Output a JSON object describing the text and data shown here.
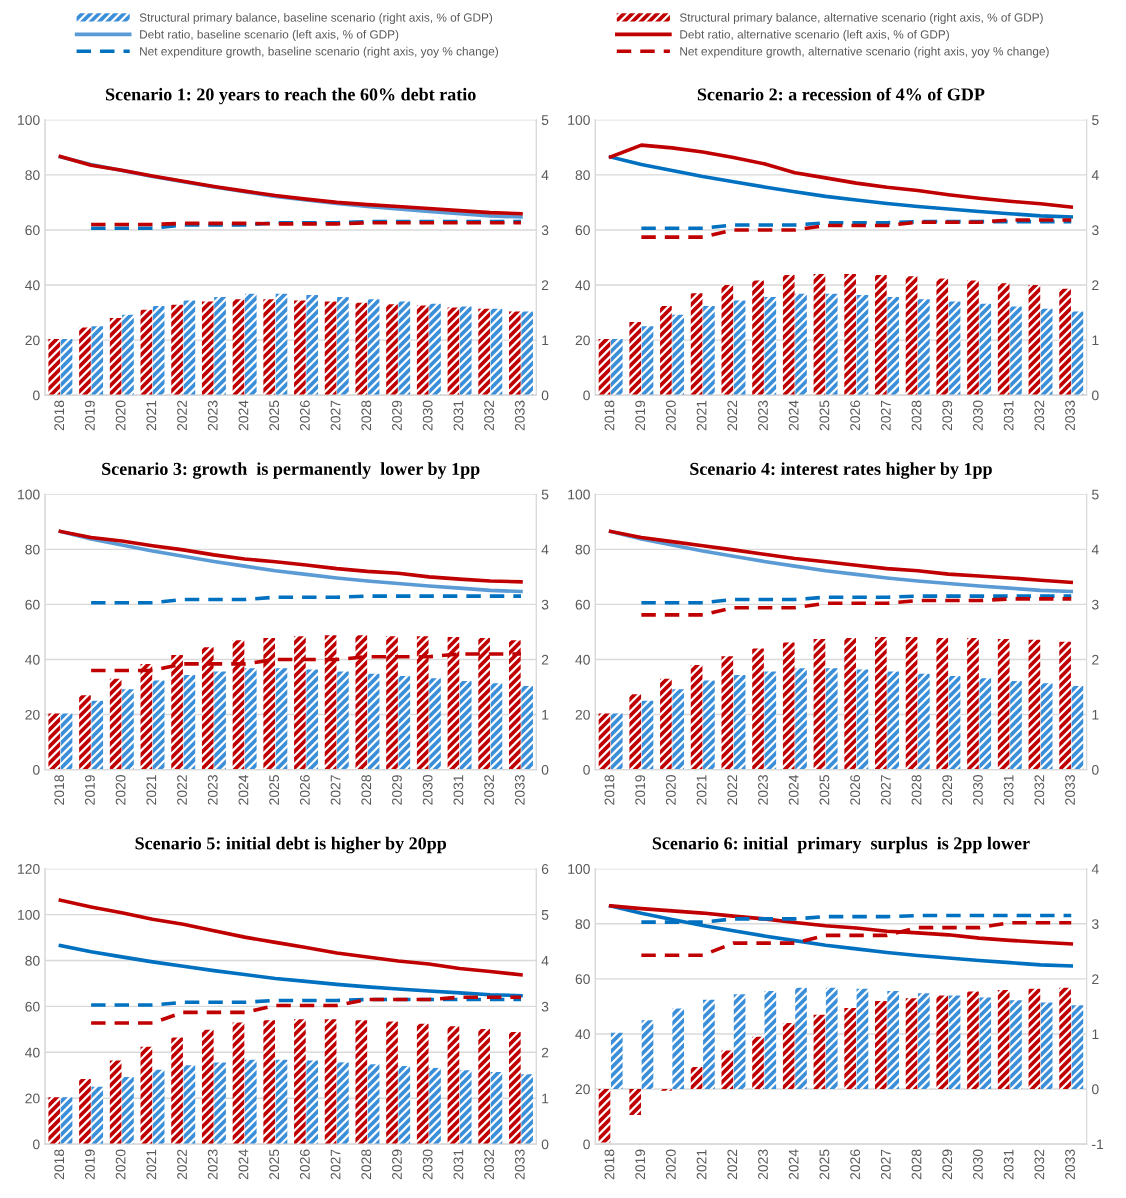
{
  "chart_data": [
    {
      "type": "bar",
      "title": "Scenario 1: 20 years to reach the 60% debt ratio",
      "legend": "top",
      "grid": "y",
      "categories": [
        "2018",
        "2019",
        "2020",
        "2021",
        "2022",
        "2023",
        "2024",
        "2025",
        "2026",
        "2027",
        "2028",
        "2029",
        "2030",
        "2031",
        "2032",
        "2033"
      ],
      "ylim": [
        0,
        100
      ],
      "yticks": [
        0,
        20,
        40,
        60,
        80,
        100
      ],
      "y2lim": [
        0,
        5
      ],
      "y2ticks": [
        0,
        1,
        2,
        3,
        4,
        5
      ],
      "series": [
        {
          "name": "Structural primary balance, baseline scenario (right axis, % of GDP)",
          "axis": "y2",
          "color": "#3b8fd9",
          "values": [
            1.02,
            1.25,
            1.46,
            1.62,
            1.72,
            1.78,
            1.84,
            1.84,
            1.82,
            1.78,
            1.74,
            1.7,
            1.66,
            1.61,
            1.57,
            1.52
          ]
        },
        {
          "name": "Debt ratio, baseline scenario (left axis, % of GDP)",
          "type": "line",
          "axis": "y",
          "color": "#5b9bd5",
          "line_style": "solid",
          "values": [
            86.5,
            83.8,
            81.6,
            79.4,
            77.5,
            75.6,
            73.9,
            72.2,
            70.9,
            69.6,
            68.5,
            67.6,
            66.7,
            65.9,
            65.1,
            64.7
          ]
        },
        {
          "name": "Net expenditure growth, baseline scenario (right axis, yoy % change)",
          "type": "line",
          "axis": "y2",
          "color": "#0070c0",
          "line_style": "dashed",
          "values": [
            null,
            3.03,
            3.03,
            3.03,
            3.09,
            3.09,
            3.09,
            3.13,
            3.13,
            3.13,
            3.15,
            3.15,
            3.15,
            3.15,
            3.15,
            3.15
          ]
        },
        {
          "name": "Structural primary balance, alternative scenario (right axis, % of GDP)",
          "axis": "y2",
          "color": "#c00000",
          "values": [
            1.02,
            1.23,
            1.4,
            1.55,
            1.64,
            1.7,
            1.74,
            1.74,
            1.72,
            1.7,
            1.68,
            1.65,
            1.63,
            1.59,
            1.57,
            1.52
          ]
        },
        {
          "name": "Debt ratio, alternative scenario (left axis, % of GDP)",
          "type": "line",
          "axis": "y",
          "color": "#c00000",
          "line_style": "solid",
          "values": [
            86.7,
            83.5,
            81.7,
            79.6,
            77.7,
            75.8,
            74.1,
            72.5,
            71.2,
            70.0,
            69.2,
            68.5,
            67.8,
            67.0,
            66.3,
            65.9
          ]
        },
        {
          "name": "Net expenditure growth, alternative scenario (right axis, yoy % change)",
          "type": "line",
          "axis": "y2",
          "color": "#c00000",
          "line_style": "dashed",
          "values": [
            null,
            3.1,
            3.1,
            3.1,
            3.12,
            3.12,
            3.12,
            3.11,
            3.11,
            3.11,
            3.13,
            3.13,
            3.13,
            3.13,
            3.13,
            3.13
          ]
        }
      ]
    },
    {
      "type": "bar",
      "title": "Scenario 2: a recession of 4% of GDP",
      "grid": "y",
      "categories": [
        "2018",
        "2019",
        "2020",
        "2021",
        "2022",
        "2023",
        "2024",
        "2025",
        "2026",
        "2027",
        "2028",
        "2029",
        "2030",
        "2031",
        "2032",
        "2033"
      ],
      "ylim": [
        0,
        100
      ],
      "yticks": [
        0,
        20,
        40,
        60,
        80,
        100
      ],
      "y2lim": [
        0,
        5
      ],
      "y2ticks": [
        0,
        1,
        2,
        3,
        4,
        5
      ],
      "series": [
        {
          "axis": "y2",
          "color": "#3b8fd9",
          "values": [
            1.02,
            1.25,
            1.46,
            1.62,
            1.72,
            1.78,
            1.84,
            1.84,
            1.82,
            1.78,
            1.74,
            1.7,
            1.66,
            1.61,
            1.57,
            1.52
          ]
        },
        {
          "type": "line",
          "axis": "y",
          "color": "#0070c0",
          "line_style": "solid",
          "values": [
            86.5,
            83.8,
            81.6,
            79.4,
            77.5,
            75.6,
            73.9,
            72.2,
            70.9,
            69.6,
            68.5,
            67.6,
            66.7,
            65.9,
            65.1,
            64.7
          ]
        },
        {
          "type": "line",
          "axis": "y2",
          "color": "#0070c0",
          "line_style": "dashed",
          "values": [
            null,
            3.03,
            3.03,
            3.03,
            3.09,
            3.09,
            3.09,
            3.13,
            3.13,
            3.13,
            3.15,
            3.15,
            3.15,
            3.15,
            3.15,
            3.15
          ]
        },
        {
          "axis": "y2",
          "color": "#c00000",
          "values": [
            1.02,
            1.33,
            1.62,
            1.85,
            2.0,
            2.08,
            2.18,
            2.2,
            2.2,
            2.18,
            2.16,
            2.12,
            2.08,
            2.03,
            2.0,
            1.93
          ]
        },
        {
          "type": "line",
          "axis": "y",
          "color": "#c00000",
          "line_style": "solid",
          "values": [
            86.5,
            90.8,
            89.8,
            88.3,
            86.3,
            84.0,
            80.8,
            78.9,
            77.0,
            75.5,
            74.3,
            72.8,
            71.5,
            70.4,
            69.5,
            68.3
          ]
        },
        {
          "type": "line",
          "axis": "y2",
          "color": "#c00000",
          "line_style": "dashed",
          "values": [
            null,
            2.87,
            2.87,
            2.87,
            3.0,
            3.0,
            3.0,
            3.08,
            3.08,
            3.08,
            3.14,
            3.14,
            3.14,
            3.18,
            3.18,
            3.18
          ]
        }
      ]
    },
    {
      "type": "bar",
      "title": "Scenario 3: growth  is permanently  lower by 1pp",
      "grid": "y",
      "categories": [
        "2018",
        "2019",
        "2020",
        "2021",
        "2022",
        "2023",
        "2024",
        "2025",
        "2026",
        "2027",
        "2028",
        "2029",
        "2030",
        "2031",
        "2032",
        "2033"
      ],
      "ylim": [
        0,
        100
      ],
      "yticks": [
        0,
        20,
        40,
        60,
        80,
        100
      ],
      "y2lim": [
        0,
        5
      ],
      "y2ticks": [
        0,
        1,
        2,
        3,
        4,
        5
      ],
      "series": [
        {
          "axis": "y2",
          "color": "#3b8fd9",
          "values": [
            1.02,
            1.25,
            1.46,
            1.62,
            1.72,
            1.78,
            1.84,
            1.84,
            1.82,
            1.78,
            1.74,
            1.7,
            1.66,
            1.61,
            1.57,
            1.52
          ]
        },
        {
          "type": "line",
          "axis": "y",
          "color": "#5b9bd5",
          "line_style": "solid",
          "values": [
            86.5,
            83.8,
            81.6,
            79.4,
            77.5,
            75.6,
            73.9,
            72.2,
            70.9,
            69.6,
            68.5,
            67.6,
            66.7,
            65.9,
            65.1,
            64.7
          ]
        },
        {
          "type": "line",
          "axis": "y2",
          "color": "#0070c0",
          "line_style": "dashed",
          "values": [
            null,
            3.03,
            3.03,
            3.03,
            3.09,
            3.09,
            3.09,
            3.13,
            3.13,
            3.13,
            3.15,
            3.15,
            3.15,
            3.15,
            3.15,
            3.15
          ]
        },
        {
          "axis": "y2",
          "color": "#c00000",
          "values": [
            1.02,
            1.35,
            1.65,
            1.92,
            2.08,
            2.22,
            2.35,
            2.39,
            2.42,
            2.44,
            2.44,
            2.42,
            2.42,
            2.41,
            2.39,
            2.35
          ]
        },
        {
          "type": "line",
          "axis": "y",
          "color": "#c00000",
          "line_style": "solid",
          "values": [
            86.5,
            84.3,
            83.0,
            81.3,
            79.8,
            78.0,
            76.5,
            75.5,
            74.3,
            73.0,
            72.0,
            71.3,
            70.0,
            69.2,
            68.5,
            68.2
          ]
        },
        {
          "type": "line",
          "axis": "y2",
          "color": "#c00000",
          "line_style": "dashed",
          "values": [
            null,
            1.8,
            1.8,
            1.8,
            1.92,
            1.92,
            1.92,
            2.0,
            2.0,
            2.0,
            2.05,
            2.05,
            2.05,
            2.1,
            2.1,
            2.1
          ]
        }
      ]
    },
    {
      "type": "bar",
      "title": "Scenario 4: interest rates higher by 1pp",
      "grid": "y",
      "categories": [
        "2018",
        "2019",
        "2020",
        "2021",
        "2022",
        "2023",
        "2024",
        "2025",
        "2026",
        "2027",
        "2028",
        "2029",
        "2030",
        "2031",
        "2032",
        "2033"
      ],
      "ylim": [
        0,
        100
      ],
      "yticks": [
        0,
        20,
        40,
        60,
        80,
        100
      ],
      "y2lim": [
        0,
        5
      ],
      "y2ticks": [
        0,
        1,
        2,
        3,
        4,
        5
      ],
      "series": [
        {
          "axis": "y2",
          "color": "#3b8fd9",
          "values": [
            1.02,
            1.25,
            1.46,
            1.62,
            1.72,
            1.78,
            1.84,
            1.84,
            1.82,
            1.78,
            1.74,
            1.7,
            1.66,
            1.61,
            1.57,
            1.52
          ]
        },
        {
          "type": "line",
          "axis": "y",
          "color": "#5b9bd5",
          "line_style": "solid",
          "values": [
            86.5,
            83.8,
            81.6,
            79.4,
            77.5,
            75.6,
            73.9,
            72.2,
            70.9,
            69.6,
            68.5,
            67.6,
            66.7,
            65.9,
            65.1,
            64.7
          ]
        },
        {
          "type": "line",
          "axis": "y2",
          "color": "#0070c0",
          "line_style": "dashed",
          "values": [
            null,
            3.03,
            3.03,
            3.03,
            3.09,
            3.09,
            3.09,
            3.13,
            3.13,
            3.13,
            3.15,
            3.15,
            3.15,
            3.15,
            3.15,
            3.15
          ]
        },
        {
          "axis": "y2",
          "color": "#c00000",
          "values": [
            1.02,
            1.37,
            1.65,
            1.9,
            2.06,
            2.2,
            2.31,
            2.37,
            2.39,
            2.41,
            2.41,
            2.39,
            2.39,
            2.37,
            2.36,
            2.32
          ]
        },
        {
          "type": "line",
          "axis": "y",
          "color": "#c00000",
          "line_style": "solid",
          "values": [
            86.5,
            84.3,
            82.8,
            81.3,
            79.8,
            78.2,
            76.7,
            75.5,
            74.2,
            73.0,
            72.2,
            71.0,
            70.3,
            69.6,
            68.8,
            68.0
          ]
        },
        {
          "type": "line",
          "axis": "y2",
          "color": "#c00000",
          "line_style": "dashed",
          "values": [
            null,
            2.81,
            2.81,
            2.81,
            2.94,
            2.94,
            2.94,
            3.02,
            3.02,
            3.02,
            3.07,
            3.07,
            3.07,
            3.1,
            3.1,
            3.1
          ]
        }
      ]
    },
    {
      "type": "bar",
      "title": "Scenario 5: initial debt is higher by 20pp",
      "grid": "y",
      "categories": [
        "2018",
        "2019",
        "2020",
        "2021",
        "2022",
        "2023",
        "2024",
        "2025",
        "2026",
        "2027",
        "2028",
        "2029",
        "2030",
        "2031",
        "2032",
        "2033"
      ],
      "ylim": [
        0,
        120
      ],
      "yticks": [
        0,
        20,
        40,
        60,
        80,
        100,
        120
      ],
      "y2lim": [
        0,
        6
      ],
      "y2ticks": [
        0,
        1,
        2,
        3,
        4,
        5,
        6
      ],
      "series": [
        {
          "axis": "y2",
          "color": "#3b8fd9",
          "values": [
            1.02,
            1.25,
            1.46,
            1.62,
            1.72,
            1.78,
            1.84,
            1.84,
            1.82,
            1.78,
            1.74,
            1.7,
            1.66,
            1.61,
            1.57,
            1.52
          ]
        },
        {
          "type": "line",
          "axis": "y",
          "color": "#0070c0",
          "line_style": "solid",
          "values": [
            86.5,
            83.8,
            81.6,
            79.4,
            77.5,
            75.6,
            73.9,
            72.2,
            70.9,
            69.6,
            68.5,
            67.6,
            66.7,
            65.9,
            65.1,
            64.7
          ]
        },
        {
          "type": "line",
          "axis": "y2",
          "color": "#0070c0",
          "line_style": "dashed",
          "values": [
            null,
            3.03,
            3.03,
            3.03,
            3.09,
            3.09,
            3.09,
            3.13,
            3.13,
            3.13,
            3.15,
            3.15,
            3.15,
            3.15,
            3.15,
            3.15
          ]
        },
        {
          "axis": "y2",
          "color": "#c00000",
          "values": [
            1.02,
            1.42,
            1.82,
            2.12,
            2.32,
            2.49,
            2.65,
            2.7,
            2.72,
            2.72,
            2.7,
            2.67,
            2.62,
            2.57,
            2.51,
            2.44
          ]
        },
        {
          "type": "line",
          "axis": "y",
          "color": "#c00000",
          "line_style": "solid",
          "values": [
            106.3,
            103.3,
            100.8,
            98.0,
            95.8,
            93.0,
            90.2,
            87.9,
            85.7,
            83.3,
            81.5,
            79.8,
            78.5,
            76.5,
            75.2,
            73.8
          ]
        },
        {
          "type": "line",
          "axis": "y2",
          "color": "#c00000",
          "line_style": "dashed",
          "values": [
            null,
            2.64,
            2.64,
            2.64,
            2.87,
            2.87,
            2.87,
            3.02,
            3.02,
            3.02,
            3.15,
            3.15,
            3.15,
            3.2,
            3.2,
            3.2
          ]
        }
      ]
    },
    {
      "type": "bar",
      "title": "Scenario 6: initial  primary  surplus  is 2pp lower",
      "grid": "y",
      "categories": [
        "2018",
        "2019",
        "2020",
        "2021",
        "2022",
        "2023",
        "2024",
        "2025",
        "2026",
        "2027",
        "2028",
        "2029",
        "2030",
        "2031",
        "2032",
        "2033"
      ],
      "ylim": [
        0,
        100
      ],
      "yticks": [
        0,
        20,
        40,
        60,
        80,
        100
      ],
      "y2lim": [
        -1,
        4
      ],
      "y2ticks": [
        -1,
        0,
        1,
        2,
        3,
        4
      ],
      "series": [
        {
          "axis": "y2",
          "color": "#3b8fd9",
          "values": [
            1.02,
            1.25,
            1.46,
            1.62,
            1.72,
            1.78,
            1.84,
            1.84,
            1.82,
            1.78,
            1.74,
            1.7,
            1.66,
            1.61,
            1.57,
            1.52
          ]
        },
        {
          "type": "line",
          "axis": "y",
          "color": "#0070c0",
          "line_style": "solid",
          "values": [
            86.5,
            83.8,
            81.6,
            79.4,
            77.5,
            75.6,
            73.9,
            72.2,
            70.9,
            69.6,
            68.5,
            67.6,
            66.7,
            65.9,
            65.1,
            64.7
          ]
        },
        {
          "type": "line",
          "axis": "y2",
          "color": "#0070c0",
          "line_style": "dashed",
          "values": [
            null,
            3.03,
            3.03,
            3.03,
            3.09,
            3.09,
            3.09,
            3.13,
            3.13,
            3.13,
            3.15,
            3.15,
            3.15,
            3.15,
            3.15,
            3.15
          ]
        },
        {
          "axis": "y2",
          "color": "#c00000",
          "values": [
            -0.97,
            -0.47,
            -0.03,
            0.4,
            0.7,
            0.95,
            1.2,
            1.35,
            1.47,
            1.6,
            1.65,
            1.7,
            1.77,
            1.8,
            1.82,
            1.84
          ]
        },
        {
          "type": "line",
          "axis": "y",
          "color": "#c00000",
          "line_style": "solid",
          "values": [
            86.5,
            85.5,
            84.7,
            83.9,
            82.8,
            81.8,
            80.5,
            79.3,
            78.5,
            77.3,
            76.7,
            76.0,
            74.8,
            74.0,
            73.3,
            72.7
          ]
        },
        {
          "type": "line",
          "axis": "y2",
          "color": "#c00000",
          "line_style": "dashed",
          "values": [
            null,
            2.43,
            2.43,
            2.43,
            2.65,
            2.65,
            2.65,
            2.79,
            2.79,
            2.79,
            2.93,
            2.93,
            2.93,
            3.02,
            3.02,
            3.02
          ]
        }
      ]
    }
  ]
}
